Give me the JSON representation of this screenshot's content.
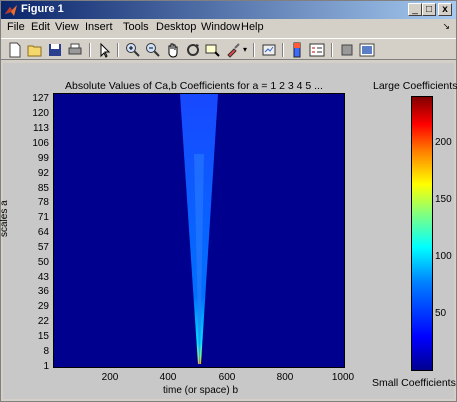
{
  "window": {
    "title": "Figure 1",
    "min": "_",
    "max": "□",
    "close": "x"
  },
  "menu": [
    "File",
    "Edit",
    "View",
    "Insert",
    "Tools",
    "Desktop",
    "Window",
    "Help"
  ],
  "menu_overflow": "↘",
  "toolbar": [
    "new-file",
    "open-file",
    "save",
    "print",
    "edit-plot",
    "zoom-in",
    "zoom-out",
    "pan",
    "rotate-3d",
    "data-cursor",
    "brush",
    "link-plot",
    "insert-colorbar",
    "insert-legend",
    "hide-plot-tools",
    "show-plot-tools"
  ],
  "chart_data": {
    "type": "heatmap",
    "title": "Absolute Values of Ca,b Coefficients for a =  1 2 3 4 5 ...",
    "xlabel": "time (or space) b",
    "ylabel": "scales a",
    "xticks": [
      "200",
      "400",
      "600",
      "800",
      "1000"
    ],
    "yticks": [
      "127",
      "120",
      "113",
      "106",
      "99",
      "92",
      "85",
      "78",
      "71",
      "64",
      "57",
      "50",
      "43",
      "36",
      "29",
      "22",
      "15",
      "8",
      "1"
    ],
    "xlim": [
      1,
      1000
    ],
    "ylim": [
      1,
      127
    ],
    "colorbar": {
      "top_label": "Large Coefficients",
      "bottom_label": "Small Coefficients",
      "ticks": [
        "200",
        "150",
        "100",
        "50"
      ],
      "tick_values": [
        200,
        150,
        100,
        50
      ],
      "range": [
        0,
        240
      ]
    },
    "feature": "cone of large coefficients centred near b = 500, widening with scale a"
  }
}
